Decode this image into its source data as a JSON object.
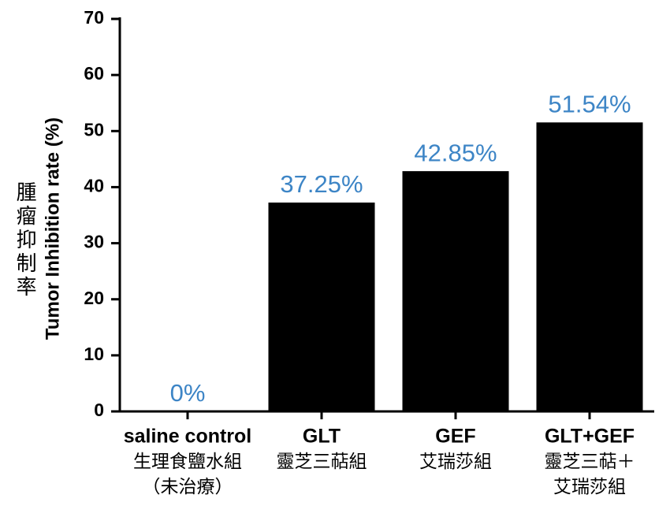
{
  "chart_data": {
    "type": "bar",
    "y_label": "Tumor Inhibition rate (%)",
    "y_label_2": "腫瘤抑制率",
    "categories": [
      [
        "saline control",
        "生理食鹽水組",
        "（未治療）"
      ],
      [
        "GLT",
        "靈芝三萜組"
      ],
      [
        "GEF",
        "艾瑞莎組"
      ],
      [
        "GLT+GEF",
        "靈芝三萜＋",
        "艾瑞莎組"
      ]
    ],
    "values": [
      0,
      37.25,
      42.85,
      51.54
    ],
    "value_labels": [
      "0%",
      "37.25%",
      "42.85%",
      "51.54%"
    ],
    "color": "#000000",
    "label_color": "#3d85c6",
    "ylim": [
      0,
      70
    ],
    "yticks": [
      0,
      10,
      20,
      30,
      40,
      50,
      60,
      70
    ]
  }
}
